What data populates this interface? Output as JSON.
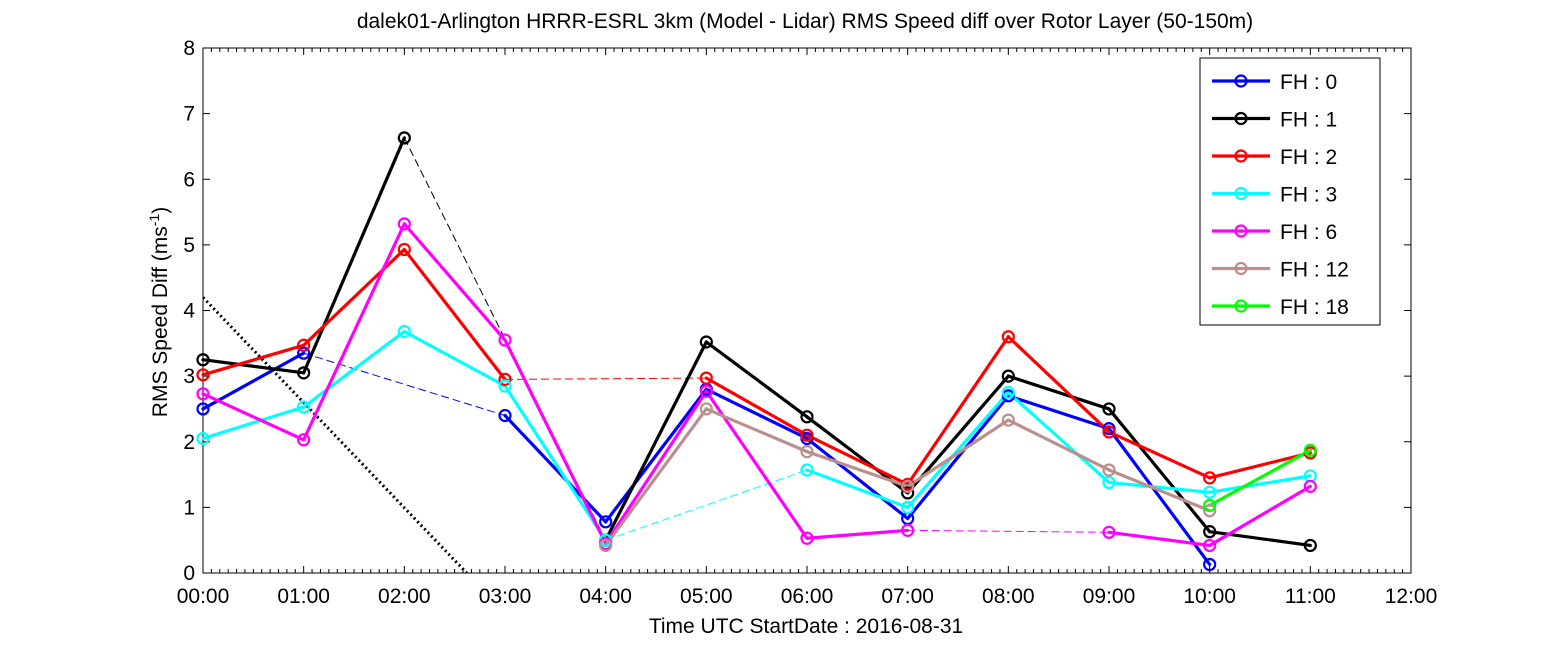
{
  "chart_data": {
    "type": "line",
    "title": "dalek01-Arlington HRRR-ESRL 3km (Model - Lidar) RMS Speed diff over Rotor Layer (50-150m)",
    "xlabel": "Time UTC    StartDate : 2016-08-31",
    "ylabel_main": "RMS Speed Diff (ms",
    "ylabel_sup": "-1",
    "ylabel_end": ")",
    "x_ticks": [
      "00:00",
      "01:00",
      "02:00",
      "03:00",
      "04:00",
      "05:00",
      "06:00",
      "07:00",
      "08:00",
      "09:00",
      "10:00",
      "11:00",
      "12:00"
    ],
    "y_ticks": [
      "0",
      "1",
      "2",
      "3",
      "4",
      "5",
      "6",
      "7",
      "8"
    ],
    "xlim": [
      0,
      12
    ],
    "ylim": [
      0,
      8
    ],
    "grid": false,
    "legend_position": "top-right",
    "series": [
      {
        "name": "FH : 0",
        "color": "#0000ff",
        "values": [
          2.5,
          3.35,
          null,
          2.4,
          0.78,
          2.8,
          2.05,
          0.83,
          2.7,
          2.2,
          0.13,
          null
        ]
      },
      {
        "name": "FH : 1",
        "color": "#000000",
        "values": [
          3.25,
          3.05,
          6.63,
          null,
          0.5,
          3.52,
          2.38,
          1.22,
          3.0,
          2.5,
          0.63,
          0.42
        ]
      },
      {
        "name": "FH : 2",
        "color": "#ff0000",
        "values": [
          3.02,
          3.47,
          4.93,
          2.95,
          null,
          2.97,
          2.1,
          1.35,
          3.6,
          2.15,
          1.45,
          1.83
        ]
      },
      {
        "name": "FH : 3",
        "color": "#00ffff",
        "values": [
          2.05,
          2.53,
          3.68,
          2.85,
          0.5,
          null,
          1.57,
          1.0,
          2.75,
          1.38,
          1.23,
          1.48
        ]
      },
      {
        "name": "FH : 6",
        "color": "#ff00ff",
        "values": [
          2.73,
          2.03,
          5.32,
          3.55,
          0.45,
          2.77,
          0.53,
          0.65,
          null,
          0.62,
          0.42,
          1.32
        ]
      },
      {
        "name": "FH : 12",
        "color": "#bc8f8f",
        "values": [
          null,
          null,
          null,
          null,
          0.42,
          2.5,
          1.85,
          1.32,
          2.33,
          1.57,
          0.95,
          null
        ]
      },
      {
        "name": "FH : 18",
        "color": "#00ff00",
        "values": [
          null,
          null,
          null,
          null,
          null,
          null,
          null,
          null,
          null,
          null,
          1.03,
          1.87
        ]
      }
    ],
    "reference_line": {
      "x": [
        0,
        2.62
      ],
      "y": [
        4.2,
        0
      ],
      "style": "dotted",
      "color": "#000000"
    }
  }
}
